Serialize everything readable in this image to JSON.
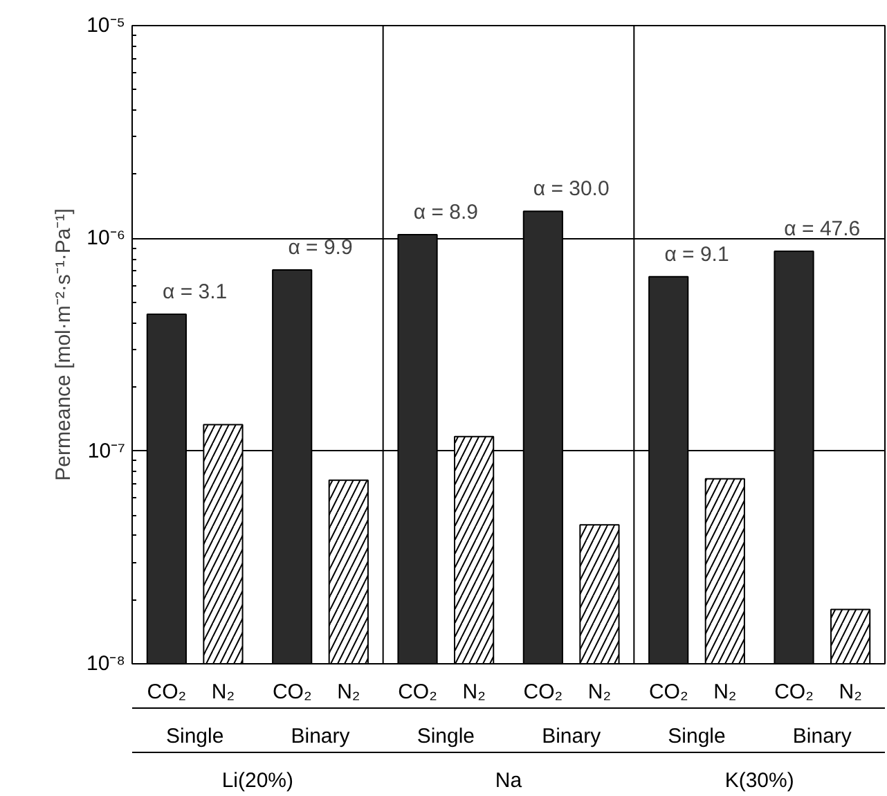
{
  "chart_data": {
    "type": "bar",
    "ylabel": "Permeance [mol·m⁻²·s⁻¹·Pa⁻¹]",
    "categories": [
      "Single",
      "Binary",
      "Single",
      "Binary",
      "Single",
      "Binary"
    ],
    "series": [
      {
        "name": "CO₂",
        "color": "#2b2b2b",
        "values": [
          4.4e-07,
          7.1e-07,
          1.04e-06,
          1.34e-06,
          6.6e-07,
          8.7e-07
        ]
      },
      {
        "name": "N₂",
        "color": "#ffffff",
        "values": [
          1.33e-07,
          7.3e-08,
          1.17e-07,
          4.5e-08,
          7.4e-08,
          1.8e-08
        ]
      }
    ],
    "log": true,
    "ylim": [
      1e-08,
      1e-05
    ],
    "yticks": [
      {
        "value": 1e-08,
        "label": "10⁻⁸"
      },
      {
        "value": 1e-07,
        "label": "10⁻⁷"
      },
      {
        "value": 1e-06,
        "label": "10⁻⁶"
      },
      {
        "value": 1e-05,
        "label": "10⁻⁵"
      }
    ],
    "grid": "y",
    "annotations": [
      "α = 3.1",
      "α = 9.9",
      "α = 8.9",
      "α = 30.0",
      "α = 9.1",
      "α = 47.6",
      "Li(20%)",
      "Na",
      "K(30%)"
    ]
  }
}
